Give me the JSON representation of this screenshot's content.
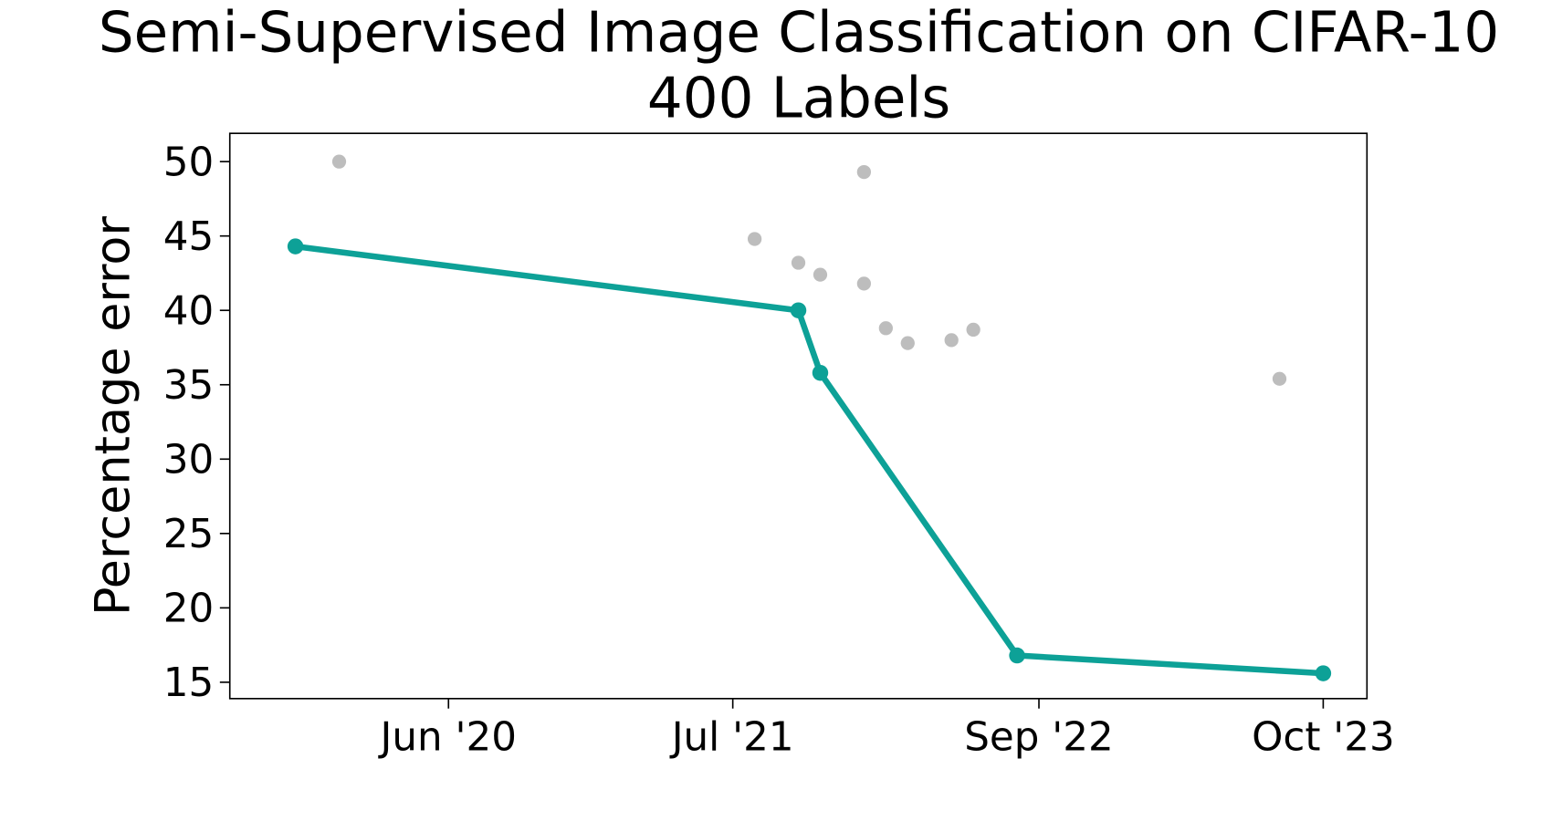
{
  "chart_data": {
    "type": "line",
    "title": "Semi-Supervised Image Classification on CIFAR-10",
    "subtitle": "400 Labels",
    "y_label": "Percentage error",
    "xlim": [
      "2019-08",
      "2023-12"
    ],
    "xticks": [
      {
        "value": "2020-06",
        "label": "Jun '20"
      },
      {
        "value": "2021-07",
        "label": "Jul '21"
      },
      {
        "value": "2022-09",
        "label": "Sep '22"
      },
      {
        "value": "2023-10",
        "label": "Oct '23"
      }
    ],
    "ylim": [
      13.9,
      51.9
    ],
    "yticks": [
      15,
      20,
      25,
      30,
      35,
      40,
      45,
      50
    ],
    "grid": false,
    "series": [
      {
        "color": "#bdbdbd",
        "line": false,
        "x": [
          "2020-01",
          "2021-08",
          "2021-10",
          "2021-11",
          "2022-01",
          "2022-01",
          "2022-02",
          "2022-03",
          "2022-05",
          "2022-06",
          "2023-08"
        ],
        "values": [
          50.0,
          44.8,
          43.2,
          42.4,
          49.3,
          41.8,
          38.8,
          37.8,
          38.0,
          38.7,
          35.4
        ]
      },
      {
        "color": "#0da197",
        "line": true,
        "x": [
          "2019-11",
          "2021-10",
          "2021-11",
          "2022-08",
          "2023-10"
        ],
        "values": [
          44.3,
          40.0,
          35.8,
          16.8,
          15.6
        ]
      }
    ]
  }
}
